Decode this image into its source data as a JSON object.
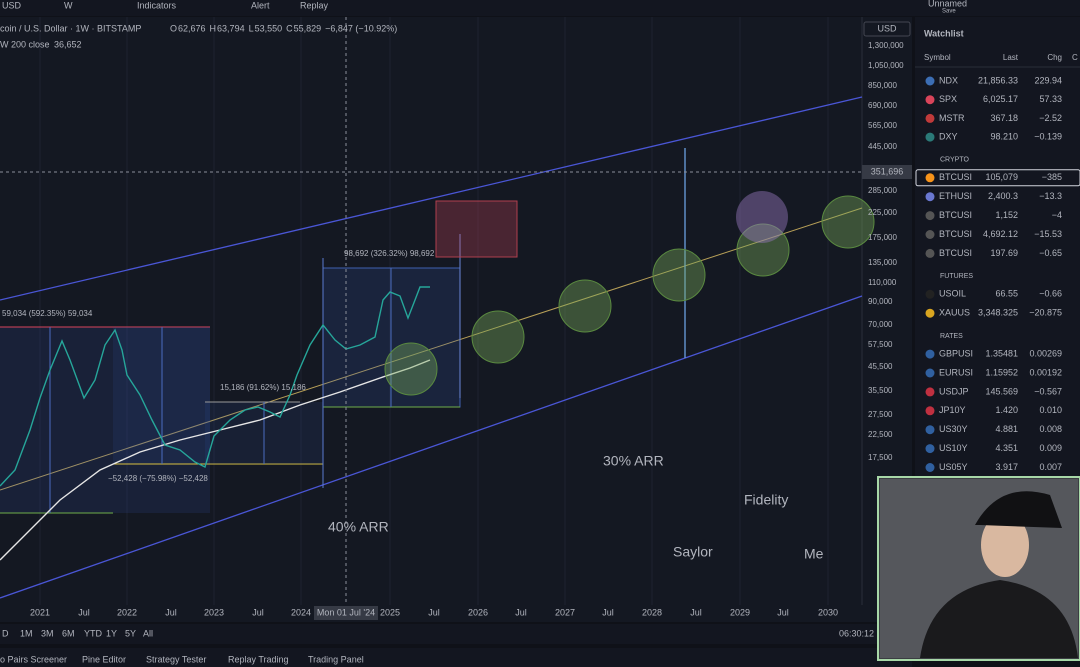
{
  "toolbar": {
    "symbol": "USD",
    "interval": "W",
    "indicators": "Indicators",
    "alert": "Alert",
    "replay": "Replay",
    "layout_name": "Unnamed",
    "layout_status": "Save"
  },
  "legend": {
    "title": "coin / U.S. Dollar · 1W · BITSTAMP",
    "ohlc": [
      {
        "label": "O",
        "value": "62,676"
      },
      {
        "label": "H",
        "value": "63,794"
      },
      {
        "label": "L",
        "value": "53,550"
      },
      {
        "label": "C",
        "value": "55,829"
      }
    ],
    "change": "−6,847 (−10.92%)",
    "indicator": "W 200 close",
    "indicator_value": "36,652"
  },
  "currency": "USD",
  "price_axis": [
    "1,300,000",
    "1,050,000",
    "850,000",
    "690,000",
    "565,000",
    "445,000",
    "285,000",
    "225,000",
    "175,000",
    "135,000",
    "110,000",
    "90,000",
    "70,000",
    "57,500",
    "45,500",
    "35,500",
    "27,500",
    "22,500",
    "17,500"
  ],
  "crosshair_price": "351,696",
  "time_axis": [
    "2021",
    "Jul",
    "2022",
    "Jul",
    "2023",
    "Jul",
    "2024",
    "2025",
    "Jul",
    "2026",
    "Jul",
    "2027",
    "Jul",
    "2028",
    "Jul",
    "2029",
    "Jul",
    "2030"
  ],
  "crosshair_time": "Mon 01 Jul '24",
  "annotations": {
    "range_2021": "59,034 (592.35%) 59,034",
    "range_2023": "15,186 (91.62%) 15,186",
    "range_2022": "−52,428 (−75.98%) −52,428",
    "range_2024": "98,692 (326.32%) 98,692",
    "arr_40": "40% ARR",
    "arr_30": "30% ARR",
    "fidelity": "Fidelity",
    "saylor": "Saylor",
    "me": "Me"
  },
  "ranges": [
    "D",
    "1M",
    "3M",
    "6M",
    "YTD",
    "1Y",
    "5Y",
    "All"
  ],
  "clock": "06:30:12",
  "bottom_tabs": [
    "o Pairs Screener",
    "Pine Editor",
    "Strategy Tester",
    "Replay Trading",
    "Trading Panel"
  ],
  "watchlist": {
    "title": "Watchlist",
    "columns": [
      "Symbol",
      "Last",
      "Chg",
      "C"
    ],
    "rows": [
      {
        "symbol": "NDX",
        "last": "21,856.33",
        "chg": "229.94"
      },
      {
        "symbol": "SPX",
        "last": "6,025.17",
        "chg": "57.33"
      },
      {
        "symbol": "MSTR",
        "last": "367.18",
        "chg": "−2.52"
      },
      {
        "symbol": "DXY",
        "last": "98.210",
        "chg": "−0.139"
      }
    ],
    "sections": [
      {
        "title": "CRYPTO",
        "rows": [
          {
            "symbol": "BTCUSI",
            "last": "105,079",
            "chg": "−385"
          },
          {
            "symbol": "ETHUSI",
            "last": "2,400.3",
            "chg": "−13.3"
          },
          {
            "symbol": "BTCUSI",
            "last": "1,152",
            "chg": "−4"
          },
          {
            "symbol": "BTCUSI",
            "last": "4,692.12",
            "chg": "−15.53"
          },
          {
            "symbol": "BTCUSI",
            "last": "197.69",
            "chg": "−0.65"
          }
        ]
      },
      {
        "title": "FUTURES",
        "rows": [
          {
            "symbol": "USOIL",
            "last": "66.55",
            "chg": "−0.66"
          },
          {
            "symbol": "XAUUS",
            "last": "3,348.325",
            "chg": "−20.875"
          }
        ]
      },
      {
        "title": "RATES",
        "rows": [
          {
            "symbol": "GBPUSI",
            "last": "1.35481",
            "chg": "0.00269"
          },
          {
            "symbol": "EURUSI",
            "last": "1.15952",
            "chg": "0.00192"
          },
          {
            "symbol": "USDJP",
            "last": "145.569",
            "chg": "−0.567"
          },
          {
            "symbol": "JP10Y",
            "last": "1.420",
            "chg": "0.010"
          },
          {
            "symbol": "US30Y",
            "last": "4.881",
            "chg": "0.008"
          },
          {
            "symbol": "US10Y",
            "last": "4.351",
            "chg": "0.009"
          },
          {
            "symbol": "US05Y",
            "last": "3.917",
            "chg": "0.007"
          }
        ]
      }
    ]
  }
}
